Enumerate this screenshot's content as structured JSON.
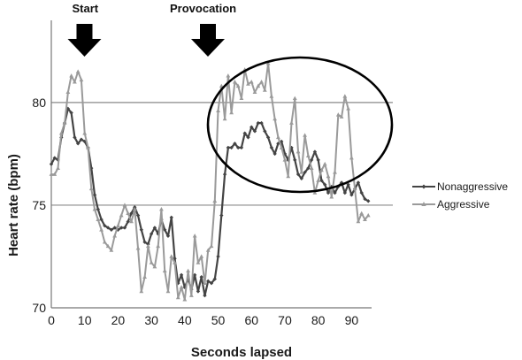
{
  "chart_data": {
    "type": "line",
    "title": "",
    "xlabel": "Seconds lapsed",
    "ylabel": "Heart rate (bpm)",
    "xlim": [
      0,
      96
    ],
    "ylim": [
      70,
      84
    ],
    "x_ticks": [
      "0",
      "10",
      "20",
      "30",
      "40",
      "50",
      "60",
      "70",
      "80",
      "90"
    ],
    "y_ticks": [
      "70",
      "75",
      "80"
    ],
    "grid": "horizontal at 75 and 80",
    "legend_position": "right",
    "annotations": [
      {
        "label": "Start",
        "x": 11
      },
      {
        "label": "Provocation",
        "x": 48
      }
    ],
    "highlight": "ellipse around 52–99 seconds",
    "series": [
      {
        "name": "Nonaggressive",
        "color": "#444444",
        "x": [
          0,
          1,
          2,
          3,
          4,
          5,
          6,
          7,
          8,
          9,
          10,
          11,
          12,
          13,
          14,
          15,
          16,
          17,
          18,
          19,
          20,
          21,
          22,
          23,
          24,
          25,
          26,
          27,
          28,
          29,
          30,
          31,
          32,
          33,
          34,
          35,
          36,
          37,
          38,
          39,
          40,
          41,
          42,
          43,
          44,
          45,
          46,
          47,
          48,
          49,
          50,
          51,
          52,
          53,
          54,
          55,
          56,
          57,
          58,
          59,
          60,
          61,
          62,
          63,
          64,
          65,
          66,
          67,
          68,
          69,
          70,
          71,
          72,
          73,
          74,
          75,
          76,
          77,
          78,
          79,
          80,
          81,
          82,
          83,
          84,
          85,
          86,
          87,
          88,
          89,
          90,
          91,
          92,
          93,
          94,
          95
        ],
        "y": [
          77.0,
          77.3,
          77.2,
          78.3,
          79.0,
          79.7,
          79.5,
          78.3,
          78.0,
          78.2,
          78.1,
          77.8,
          76.8,
          75.5,
          74.8,
          74.3,
          74.0,
          73.9,
          73.8,
          73.9,
          73.8,
          73.9,
          73.9,
          74.2,
          74.6,
          74.9,
          74.5,
          73.8,
          73.2,
          73.1,
          73.6,
          73.9,
          73.6,
          74.3,
          73.8,
          73.5,
          74.4,
          72.4,
          71.2,
          71.6,
          71.0,
          71.4,
          70.9,
          71.6,
          70.8,
          71.5,
          70.6,
          71.3,
          71.2,
          71.4,
          72.5,
          74.5,
          76.5,
          77.8,
          77.8,
          78.0,
          77.8,
          77.8,
          78.5,
          78.3,
          78.8,
          78.6,
          79.0,
          79.0,
          78.6,
          78.3,
          77.8,
          77.5,
          78.0,
          78.1,
          77.5,
          77.2,
          77.8,
          77.2,
          76.5,
          76.3,
          76.6,
          76.8,
          77.2,
          77.6,
          77.2,
          76.2,
          76.0,
          75.6,
          75.9,
          75.6,
          75.9,
          76.1,
          75.6,
          76.0,
          75.5,
          75.8,
          76.1,
          75.6,
          75.3,
          75.2
        ]
      },
      {
        "name": "Aggressive",
        "color": "#9a9a9a",
        "x": [
          0,
          1,
          2,
          3,
          4,
          5,
          6,
          7,
          8,
          9,
          10,
          11,
          12,
          13,
          14,
          15,
          16,
          17,
          18,
          19,
          20,
          21,
          22,
          23,
          24,
          25,
          26,
          27,
          28,
          29,
          30,
          31,
          32,
          33,
          34,
          35,
          36,
          37,
          38,
          39,
          40,
          41,
          42,
          43,
          44,
          45,
          46,
          47,
          48,
          49,
          50,
          51,
          52,
          53,
          54,
          55,
          56,
          57,
          58,
          59,
          60,
          61,
          62,
          63,
          64,
          65,
          66,
          67,
          68,
          69,
          70,
          71,
          72,
          73,
          74,
          75,
          76,
          77,
          78,
          79,
          80,
          81,
          82,
          83,
          84,
          85,
          86,
          87,
          88,
          89,
          90,
          91,
          92,
          93,
          94,
          95
        ],
        "y": [
          76.5,
          76.5,
          76.8,
          78.5,
          79.0,
          80.5,
          81.3,
          81.0,
          81.5,
          81.1,
          78.5,
          77.8,
          75.8,
          74.8,
          74.3,
          73.8,
          73.2,
          73.0,
          72.8,
          73.5,
          74.0,
          74.5,
          75.0,
          74.6,
          74.2,
          74.8,
          72.9,
          70.8,
          71.5,
          73.0,
          72.2,
          72.0,
          73.0,
          74.8,
          71.8,
          70.8,
          72.5,
          72.2,
          70.5,
          71.0,
          70.4,
          71.8,
          70.6,
          73.5,
          72.2,
          72.5,
          71.2,
          72.8,
          73.0,
          75.2,
          79.6,
          80.8,
          79.2,
          81.3,
          79.5,
          81.0,
          80.8,
          80.2,
          81.6,
          80.9,
          81.0,
          80.5,
          80.8,
          81.0,
          80.6,
          81.9,
          80.3,
          79.2,
          78.3,
          77.8,
          77.2,
          76.4,
          79.0,
          80.2,
          77.6,
          76.6,
          78.4,
          77.4,
          76.8,
          75.6,
          76.2,
          76.7,
          77.0,
          76.4,
          75.4,
          76.6,
          79.4,
          79.3,
          80.3,
          79.7,
          77.3,
          75.8,
          74.2,
          74.6,
          74.3,
          74.5
        ]
      }
    ]
  }
}
